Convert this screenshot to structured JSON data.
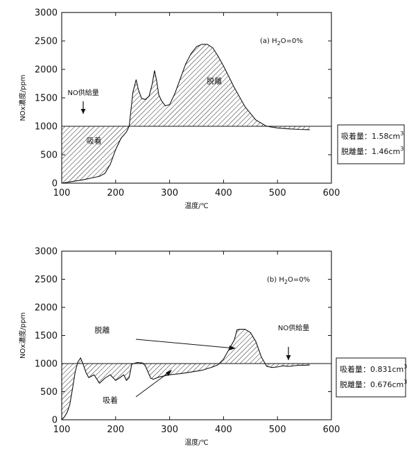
{
  "chart_data": [
    {
      "type": "area",
      "panel_label": "(a) H",
      "panel_sub": "2",
      "panel_rest": "O=0%",
      "xlabel": "温度/℃",
      "ylabel": "NOx濃度/ppm",
      "xlim": [
        100,
        600
      ],
      "ylim": [
        0,
        3000
      ],
      "x_ticks": [
        100,
        200,
        300,
        400,
        500,
        600
      ],
      "y_ticks": [
        0,
        500,
        1000,
        1500,
        2000,
        2500,
        3000
      ],
      "baseline": 1000,
      "series": [
        {
          "x": [
            100,
            120,
            140,
            155,
            170,
            180,
            190,
            200,
            210,
            220,
            225,
            228,
            232,
            238,
            242,
            248,
            255,
            262,
            268,
            272,
            276,
            280,
            285,
            292,
            300,
            310,
            320,
            330,
            340,
            350,
            360,
            370,
            380,
            390,
            400,
            420,
            440,
            460,
            480,
            500,
            520,
            540,
            560
          ],
          "y": [
            0,
            30,
            60,
            90,
            120,
            170,
            330,
            590,
            790,
            900,
            1000,
            1250,
            1600,
            1820,
            1650,
            1490,
            1470,
            1530,
            1750,
            1980,
            1800,
            1550,
            1450,
            1360,
            1380,
            1580,
            1840,
            2100,
            2280,
            2400,
            2440,
            2440,
            2380,
            2230,
            2060,
            1680,
            1340,
            1110,
            1000,
            970,
            955,
            945,
            940
          ]
        }
      ],
      "annotations": [
        {
          "text": "NO供給量",
          "x": 140,
          "y": 1550,
          "arrow": true
        },
        {
          "text": "吸着",
          "x": 160,
          "y": 700
        },
        {
          "text": "脱離",
          "x": 383,
          "y": 1750
        }
      ],
      "legend_box": [
        "吸着量：1.58cm",
        "脱離量：1.46cm"
      ],
      "legend_sup": "3"
    },
    {
      "type": "area",
      "panel_label": "(b) H",
      "panel_sub": "2",
      "panel_rest": "O=0%",
      "xlabel": "温度/℃",
      "ylabel": "NOx濃度/ppm",
      "xlim": [
        100,
        600
      ],
      "ylim": [
        0,
        3000
      ],
      "x_ticks": [
        100,
        200,
        300,
        400,
        500,
        600
      ],
      "y_ticks": [
        0,
        500,
        1000,
        1500,
        2000,
        2500,
        3000
      ],
      "baseline": 1000,
      "series": [
        {
          "x": [
            100,
            105,
            110,
            115,
            120,
            125,
            130,
            135,
            140,
            145,
            150,
            160,
            170,
            180,
            190,
            200,
            208,
            215,
            220,
            225,
            230,
            240,
            250,
            255,
            260,
            265,
            270,
            280,
            300,
            320,
            340,
            360,
            380,
            390,
            400,
            410,
            420,
            425,
            430,
            440,
            450,
            460,
            470,
            480,
            490,
            500,
            510,
            520,
            530,
            540,
            550,
            560
          ],
          "y": [
            0,
            50,
            130,
            270,
            550,
            850,
            1030,
            1100,
            980,
            840,
            750,
            800,
            650,
            740,
            800,
            700,
            750,
            800,
            700,
            750,
            990,
            1020,
            1010,
            960,
            850,
            740,
            720,
            760,
            800,
            820,
            850,
            880,
            940,
            980,
            1080,
            1250,
            1420,
            1600,
            1610,
            1610,
            1550,
            1390,
            1120,
            950,
            930,
            940,
            960,
            950,
            960,
            970,
            970,
            975
          ]
        }
      ],
      "annotations": [
        {
          "text": "脱離",
          "x": 175,
          "y": 1550
        },
        {
          "text": "吸着",
          "x": 190,
          "y": 300
        },
        {
          "text": "NO供給量",
          "x": 530,
          "y": 1590,
          "arrow": true
        }
      ],
      "legend_box": [
        "吸着量：0.831cm",
        "脱離量：0.676cm"
      ],
      "legend_sup": "3"
    }
  ]
}
